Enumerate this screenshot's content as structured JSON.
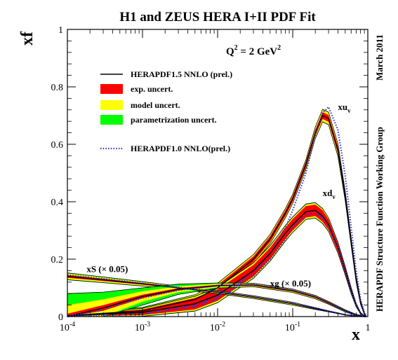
{
  "chart_data": {
    "type": "line",
    "title": "H1 and ZEUS HERA I+II PDF Fit",
    "xlabel": "x",
    "ylabel": "xf",
    "x_scale": "log",
    "xlim": [
      0.0001,
      1
    ],
    "ylim": [
      0,
      1
    ],
    "x_ticks": [
      {
        "value": 0.0001,
        "base": "10",
        "exp": "-4"
      },
      {
        "value": 0.001,
        "base": "10",
        "exp": "-3"
      },
      {
        "value": 0.01,
        "base": "10",
        "exp": "-2"
      },
      {
        "value": 0.1,
        "base": "10",
        "exp": "-1"
      },
      {
        "value": 1,
        "base": "1",
        "exp": ""
      }
    ],
    "y_ticks": [
      {
        "value": 0,
        "label": "0"
      },
      {
        "value": 0.2,
        "label": "0.2"
      },
      {
        "value": 0.4,
        "label": "0.4"
      },
      {
        "value": 0.6,
        "label": "0.6"
      },
      {
        "value": 0.8,
        "label": "0.8"
      },
      {
        "value": 1,
        "label": "1"
      }
    ],
    "scale_label": {
      "q": "Q",
      "sup1": "2",
      "mid": " = 2 GeV",
      "sup2": "2"
    },
    "right_labels": [
      "March 2011",
      "HERAPDF Structure Function Working Group"
    ],
    "legend_placement": "top-left",
    "legend": [
      {
        "key": "central",
        "label": "HERAPDF1.5 NNLO (prel.)",
        "color": "#000000",
        "style": "line"
      },
      {
        "key": "exp",
        "label": "exp. uncert.",
        "color": "#ff0000",
        "style": "box"
      },
      {
        "key": "model",
        "label": "model uncert.",
        "color": "#ffff00",
        "style": "box"
      },
      {
        "key": "param",
        "label": "parametrization uncert.",
        "color": "#00ff00",
        "style": "box"
      },
      {
        "key": "old",
        "label": "HERAPDF1.0 NNLO(prel.)",
        "color": "#3333cc",
        "style": "dotted"
      }
    ],
    "annotations": [
      {
        "name": "xuv-label",
        "base": "xu",
        "sub": "v",
        "x": 0.4,
        "y": 0.72
      },
      {
        "name": "xdv-label",
        "base": "xd",
        "sub": "v",
        "x": 0.25,
        "y": 0.42
      },
      {
        "name": "xs-label",
        "text": "xS (× 0.05)",
        "x": 0.00018,
        "y": 0.155
      },
      {
        "name": "xg-label",
        "text": "xg (× 0.05)",
        "x": 0.05,
        "y": 0.105
      }
    ],
    "series": [
      {
        "name": "xu",
        "x": [
          0.0001,
          0.001,
          0.005,
          0.01,
          0.03,
          0.05,
          0.08,
          0.1,
          0.15,
          0.2,
          0.25,
          0.3,
          0.4,
          0.5,
          0.6,
          0.7,
          0.8,
          0.9,
          0.95
        ],
        "central": [
          0.003,
          0.02,
          0.06,
          0.1,
          0.2,
          0.27,
          0.36,
          0.41,
          0.53,
          0.64,
          0.7,
          0.69,
          0.58,
          0.42,
          0.26,
          0.13,
          0.05,
          0.01,
          0.002
        ],
        "exp": [
          0.002,
          0.006,
          0.01,
          0.01,
          0.01,
          0.01,
          0.01,
          0.01,
          0.01,
          0.01,
          0.012,
          0.012,
          0.012,
          0.01,
          0.01,
          0.008,
          0.005,
          0.002,
          0.001
        ],
        "model": [
          0.004,
          0.01,
          0.015,
          0.015,
          0.015,
          0.015,
          0.015,
          0.015,
          0.015,
          0.018,
          0.02,
          0.02,
          0.02,
          0.015,
          0.012,
          0.01,
          0.006,
          0.003,
          0.001
        ],
        "param": [
          0.005,
          0.012,
          0.016,
          0.016,
          0.016,
          0.016,
          0.016,
          0.016,
          0.016,
          0.02,
          0.022,
          0.022,
          0.022,
          0.016,
          0.013,
          0.011,
          0.007,
          0.003,
          0.001
        ],
        "old": [
          0.001,
          0.01,
          0.04,
          0.07,
          0.15,
          0.22,
          0.31,
          0.37,
          0.5,
          0.63,
          0.71,
          0.73,
          0.65,
          0.49,
          0.31,
          0.16,
          0.06,
          0.015,
          0.003
        ]
      },
      {
        "name": "xd",
        "x": [
          0.0001,
          0.001,
          0.005,
          0.01,
          0.03,
          0.05,
          0.08,
          0.1,
          0.15,
          0.2,
          0.25,
          0.3,
          0.4,
          0.5,
          0.6,
          0.7,
          0.8,
          0.9,
          0.95
        ],
        "central": [
          0.002,
          0.015,
          0.045,
          0.075,
          0.16,
          0.22,
          0.29,
          0.32,
          0.365,
          0.37,
          0.35,
          0.32,
          0.24,
          0.16,
          0.09,
          0.04,
          0.012,
          0.002,
          0.0005
        ],
        "exp": [
          0.003,
          0.01,
          0.02,
          0.02,
          0.02,
          0.02,
          0.02,
          0.02,
          0.02,
          0.02,
          0.02,
          0.018,
          0.015,
          0.012,
          0.008,
          0.005,
          0.002,
          0.001,
          0.0005
        ],
        "model": [
          0.004,
          0.012,
          0.024,
          0.025,
          0.025,
          0.025,
          0.025,
          0.025,
          0.025,
          0.025,
          0.024,
          0.022,
          0.018,
          0.014,
          0.01,
          0.006,
          0.003,
          0.001,
          0.0005
        ],
        "param": [
          0.005,
          0.014,
          0.026,
          0.027,
          0.027,
          0.027,
          0.027,
          0.027,
          0.027,
          0.027,
          0.026,
          0.024,
          0.019,
          0.015,
          0.011,
          0.006,
          0.003,
          0.001,
          0.0005
        ],
        "old": [
          0.001,
          0.01,
          0.035,
          0.06,
          0.14,
          0.2,
          0.27,
          0.31,
          0.355,
          0.36,
          0.345,
          0.315,
          0.24,
          0.16,
          0.09,
          0.04,
          0.012,
          0.002,
          0.0005
        ]
      },
      {
        "name": "xS",
        "x": [
          0.0001,
          0.0003,
          0.001,
          0.003,
          0.01,
          0.03,
          0.1,
          0.2,
          0.3,
          0.5,
          0.7,
          0.9,
          0.95
        ],
        "central": [
          0.14,
          0.128,
          0.114,
          0.1,
          0.085,
          0.068,
          0.045,
          0.028,
          0.018,
          0.006,
          0.002,
          0.0003,
          0.0001
        ],
        "exp": [
          0.005,
          0.004,
          0.003,
          0.003,
          0.002,
          0.002,
          0.002,
          0.002,
          0.001,
          0.001,
          0.0005,
          0.0002,
          0.0001
        ],
        "model": [
          0.01,
          0.008,
          0.006,
          0.005,
          0.004,
          0.004,
          0.004,
          0.003,
          0.002,
          0.001,
          0.0005,
          0.0002,
          0.0001
        ],
        "param": [
          0.012,
          0.01,
          0.008,
          0.006,
          0.005,
          0.005,
          0.005,
          0.003,
          0.002,
          0.001,
          0.0005,
          0.0002,
          0.0001
        ],
        "old": [
          0.145,
          0.132,
          0.116,
          0.102,
          0.087,
          0.07,
          0.047,
          0.03,
          0.019,
          0.006,
          0.002,
          0.0003,
          0.0001
        ]
      },
      {
        "name": "xg",
        "x": [
          0.0001,
          0.0003,
          0.001,
          0.003,
          0.01,
          0.03,
          0.1,
          0.2,
          0.3,
          0.5,
          0.7,
          0.9,
          0.95
        ],
        "central": [
          0.0,
          0.03,
          0.07,
          0.095,
          0.108,
          0.11,
          0.09,
          0.068,
          0.048,
          0.02,
          0.006,
          0.0006,
          0.0001
        ],
        "exp": [
          0.01,
          0.01,
          0.006,
          0.004,
          0.003,
          0.003,
          0.003,
          0.003,
          0.003,
          0.002,
          0.001,
          0.0003,
          0.0001
        ],
        "model": [
          0.04,
          0.03,
          0.018,
          0.01,
          0.006,
          0.005,
          0.005,
          0.005,
          0.004,
          0.003,
          0.002,
          0.0005,
          0.0001
        ],
        "param": [
          0.08,
          0.055,
          0.03,
          0.018,
          0.009,
          0.006,
          0.006,
          0.006,
          0.005,
          0.004,
          0.002,
          0.0005,
          0.0001
        ],
        "old": [
          0.0,
          0.025,
          0.065,
          0.092,
          0.107,
          0.112,
          0.093,
          0.07,
          0.05,
          0.021,
          0.006,
          0.0006,
          0.0001
        ]
      }
    ]
  }
}
